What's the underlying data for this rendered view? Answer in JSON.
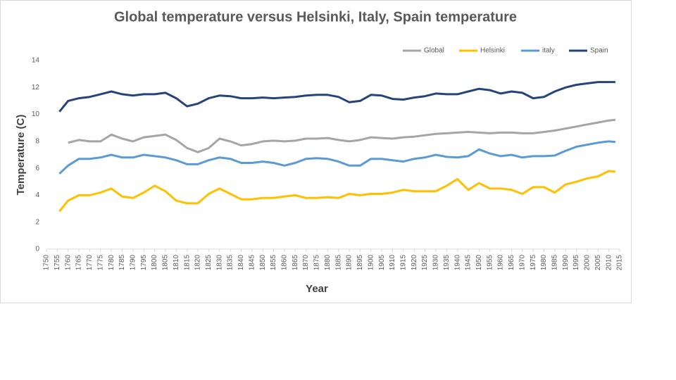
{
  "chart_data": {
    "type": "line",
    "title": "Global temperature versus Helsinki, Italy, Spain temperature",
    "x_label": "Year",
    "y_label": "Temperature (C)",
    "x": [
      1756,
      1760,
      1765,
      1770,
      1775,
      1780,
      1785,
      1790,
      1795,
      1800,
      1805,
      1810,
      1815,
      1820,
      1825,
      1830,
      1835,
      1840,
      1845,
      1850,
      1855,
      1860,
      1865,
      1870,
      1875,
      1880,
      1885,
      1890,
      1895,
      1900,
      1905,
      1910,
      1915,
      1920,
      1925,
      1930,
      1935,
      1940,
      1945,
      1950,
      1955,
      1960,
      1965,
      1970,
      1975,
      1980,
      1985,
      1990,
      1995,
      2000,
      2005,
      2010,
      2013
    ],
    "series": [
      {
        "name": "Global",
        "color": "#a5a5a5",
        "values": [
          null,
          7.9,
          8.1,
          8.0,
          8.0,
          8.5,
          8.2,
          8.0,
          8.3,
          8.4,
          8.5,
          8.1,
          7.5,
          7.2,
          7.5,
          8.2,
          8.0,
          7.7,
          7.8,
          8.0,
          8.05,
          8.0,
          8.05,
          8.2,
          8.2,
          8.25,
          8.1,
          8.0,
          8.1,
          8.3,
          8.25,
          8.2,
          8.3,
          8.35,
          8.45,
          8.55,
          8.6,
          8.65,
          8.7,
          8.65,
          8.6,
          8.65,
          8.65,
          8.6,
          8.6,
          8.7,
          8.8,
          8.95,
          9.1,
          9.25,
          9.4,
          9.55,
          9.6
        ]
      },
      {
        "name": "Helsinki",
        "color": "#ffc000",
        "values": [
          2.8,
          3.6,
          4.0,
          4.0,
          4.2,
          4.5,
          3.9,
          3.8,
          4.2,
          4.7,
          4.3,
          3.6,
          3.4,
          3.4,
          4.1,
          4.5,
          4.1,
          3.7,
          3.7,
          3.8,
          3.8,
          3.9,
          4.0,
          3.8,
          3.8,
          3.85,
          3.8,
          4.1,
          4.0,
          4.1,
          4.1,
          4.2,
          4.4,
          4.3,
          4.3,
          4.3,
          4.7,
          5.2,
          4.4,
          4.9,
          4.5,
          4.5,
          4.4,
          4.1,
          4.6,
          4.6,
          4.2,
          4.8,
          5.0,
          5.25,
          5.4,
          5.8,
          5.75
        ]
      },
      {
        "name": "italy",
        "color": "#5b9bd5",
        "values": [
          5.6,
          6.2,
          6.7,
          6.7,
          6.8,
          7.0,
          6.8,
          6.8,
          7.0,
          6.9,
          6.8,
          6.6,
          6.3,
          6.3,
          6.6,
          6.8,
          6.7,
          6.4,
          6.4,
          6.5,
          6.4,
          6.2,
          6.4,
          6.7,
          6.75,
          6.7,
          6.5,
          6.2,
          6.2,
          6.7,
          6.7,
          6.6,
          6.5,
          6.7,
          6.8,
          7.0,
          6.85,
          6.8,
          6.9,
          7.4,
          7.1,
          6.9,
          7.0,
          6.8,
          6.9,
          6.9,
          6.95,
          7.3,
          7.6,
          7.75,
          7.9,
          8.0,
          7.95
        ]
      },
      {
        "name": "Spain",
        "color": "#264478",
        "values": [
          10.2,
          11.0,
          11.2,
          11.3,
          11.5,
          11.7,
          11.5,
          11.4,
          11.5,
          11.5,
          11.6,
          11.2,
          10.6,
          10.8,
          11.2,
          11.4,
          11.35,
          11.2,
          11.2,
          11.25,
          11.2,
          11.25,
          11.3,
          11.4,
          11.45,
          11.45,
          11.3,
          10.9,
          11.0,
          11.45,
          11.4,
          11.15,
          11.1,
          11.25,
          11.35,
          11.55,
          11.5,
          11.5,
          11.7,
          11.9,
          11.8,
          11.55,
          11.7,
          11.6,
          11.2,
          11.3,
          11.7,
          12.0,
          12.2,
          12.3,
          12.4,
          12.4,
          12.4
        ]
      }
    ],
    "xlim": [
      1750,
      2015
    ],
    "xticks": [
      1750,
      1755,
      1760,
      1765,
      1770,
      1775,
      1780,
      1785,
      1790,
      1795,
      1800,
      1805,
      1810,
      1815,
      1820,
      1825,
      1830,
      1835,
      1840,
      1845,
      1850,
      1855,
      1860,
      1865,
      1870,
      1875,
      1880,
      1885,
      1890,
      1895,
      1900,
      1905,
      1910,
      1915,
      1920,
      1925,
      1930,
      1935,
      1940,
      1945,
      1950,
      1955,
      1960,
      1965,
      1970,
      1975,
      1980,
      1985,
      1990,
      1995,
      2000,
      2005,
      2010,
      2015
    ],
    "ylim": [
      0,
      14
    ],
    "yticks": [
      0,
      2,
      4,
      6,
      8,
      10,
      12,
      14
    ],
    "legend": "top-right",
    "grid": false
  }
}
